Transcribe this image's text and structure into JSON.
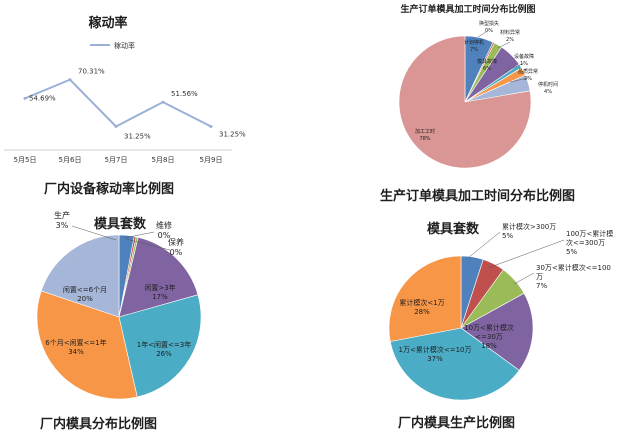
{
  "captions": {
    "line": "厂内设备稼动率比例图",
    "production_time": "生产订单模具加工时间分布比例图",
    "mold_distribution": "厂内模具分布比例图",
    "mold_production": "厂内模具生产比例图"
  },
  "chart_data": [
    {
      "type": "line",
      "title": "稼动率",
      "legend": "稼动率",
      "x": [
        "5月5日",
        "5月6日",
        "5月7日",
        "5月8日",
        "5月9日"
      ],
      "values": [
        54.69,
        70.31,
        31.25,
        51.56,
        31.25
      ],
      "data_labels": [
        "54.69%",
        "70.31%",
        "31.25%",
        "51.56%",
        "31.25%"
      ],
      "color": "#9bb0d6",
      "grid": false
    },
    {
      "type": "pie",
      "title": "生产订单模具加工时间分布比例图",
      "slices": [
        {
          "label": "计划停机",
          "pct": "7%",
          "value": 7,
          "color": "#4f81bd"
        },
        {
          "label": "换型损失",
          "pct": "0%",
          "value": 0.4,
          "color": "#c0504d"
        },
        {
          "label": "材料异常",
          "pct": "2%",
          "value": 2,
          "color": "#9bbb59"
        },
        {
          "label": "模具故障",
          "pct": "6%",
          "value": 6,
          "color": "#8064a2"
        },
        {
          "label": "设备故障",
          "pct": "1%",
          "value": 1,
          "color": "#4bacc6"
        },
        {
          "label": "品质异常",
          "pct": "2%",
          "value": 2,
          "color": "#f79646"
        },
        {
          "label": "停机时间",
          "pct": "4%",
          "value": 4,
          "color": "#a5b6d9"
        },
        {
          "label": "加工工时",
          "pct": "78%",
          "value": 78,
          "color": "#d99694"
        }
      ]
    },
    {
      "type": "pie",
      "title": "模具套数",
      "slices": [
        {
          "label": "生产",
          "pct": "3%",
          "value": 3,
          "color": "#4f81bd"
        },
        {
          "label": "维修",
          "pct": "0%",
          "value": 0.4,
          "color": "#c0504d"
        },
        {
          "label": "保养",
          "pct": "0%",
          "value": 0.4,
          "color": "#9bbb59"
        },
        {
          "label": "闲置>3年",
          "pct": "17%",
          "value": 17,
          "color": "#8064a2"
        },
        {
          "label": "1年<闲置<=3年",
          "pct": "26%",
          "value": 26,
          "color": "#4bacc6"
        },
        {
          "label": "6个月<闲置<=1年",
          "pct": "34%",
          "value": 34,
          "color": "#f79646"
        },
        {
          "label": "闲置<=6个月",
          "pct": "20%",
          "value": 20,
          "color": "#a5b6d9"
        }
      ]
    },
    {
      "type": "pie",
      "title": "模具套数",
      "slices": [
        {
          "label": "累计模次>300万",
          "pct": "5%",
          "value": 5,
          "color": "#4f81bd"
        },
        {
          "label": "100万<累计模次<=300万",
          "pct": "5%",
          "value": 5,
          "color": "#c0504d"
        },
        {
          "label": "30万<累计模次<=100万",
          "pct": "7%",
          "value": 7,
          "color": "#9bbb59"
        },
        {
          "label": "10万<累计模次<=30万",
          "pct": "18%",
          "value": 18,
          "color": "#8064a2"
        },
        {
          "label": "1万<累计模次<=10万",
          "pct": "37%",
          "value": 37,
          "color": "#4bacc6"
        },
        {
          "label": "累计模次<1万",
          "pct": "28%",
          "value": 28,
          "color": "#f79646"
        }
      ]
    }
  ]
}
